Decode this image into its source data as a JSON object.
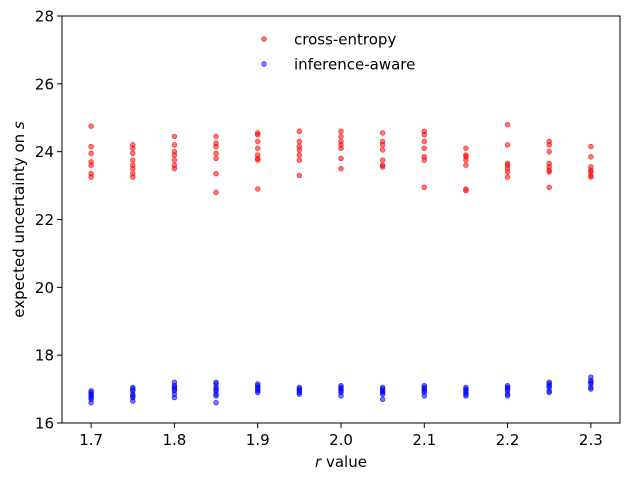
{
  "chart_data": {
    "type": "scatter",
    "title": "",
    "xlabel_var": "r",
    "xlabel_rest": " value",
    "ylabel_main": "expected uncertainty on ",
    "ylabel_var": "s",
    "xlim": [
      1.665,
      2.335
    ],
    "ylim": [
      16,
      28
    ],
    "xticks": [
      1.7,
      1.8,
      1.9,
      2.0,
      2.1,
      2.2,
      2.3
    ],
    "xtick_labels": [
      "1.7",
      "1.8",
      "1.9",
      "2.0",
      "2.1",
      "2.2",
      "2.3"
    ],
    "yticks": [
      16,
      18,
      20,
      22,
      24,
      26,
      28
    ],
    "ytick_labels": [
      "16",
      "18",
      "20",
      "22",
      "24",
      "26",
      "28"
    ],
    "grid": false,
    "legend_position": "upper-center",
    "series": [
      {
        "name": "cross-entropy",
        "color": "#ff0000",
        "points": [
          [
            1.7,
            24.75
          ],
          [
            1.7,
            24.15
          ],
          [
            1.7,
            23.95
          ],
          [
            1.7,
            23.7
          ],
          [
            1.7,
            23.6
          ],
          [
            1.7,
            23.35
          ],
          [
            1.7,
            23.25
          ],
          [
            1.75,
            24.2
          ],
          [
            1.75,
            24.1
          ],
          [
            1.75,
            23.95
          ],
          [
            1.75,
            23.75
          ],
          [
            1.75,
            23.6
          ],
          [
            1.75,
            23.5
          ],
          [
            1.75,
            23.35
          ],
          [
            1.75,
            23.25
          ],
          [
            1.8,
            24.45
          ],
          [
            1.8,
            24.2
          ],
          [
            1.8,
            24.0
          ],
          [
            1.8,
            23.9
          ],
          [
            1.8,
            23.75
          ],
          [
            1.8,
            23.6
          ],
          [
            1.8,
            23.5
          ],
          [
            1.85,
            24.45
          ],
          [
            1.85,
            24.25
          ],
          [
            1.85,
            24.15
          ],
          [
            1.85,
            23.95
          ],
          [
            1.85,
            23.8
          ],
          [
            1.85,
            23.35
          ],
          [
            1.85,
            22.8
          ],
          [
            1.9,
            24.55
          ],
          [
            1.9,
            24.5
          ],
          [
            1.9,
            24.3
          ],
          [
            1.9,
            24.1
          ],
          [
            1.9,
            23.9
          ],
          [
            1.9,
            23.8
          ],
          [
            1.9,
            23.75
          ],
          [
            1.9,
            22.9
          ],
          [
            1.95,
            24.6
          ],
          [
            1.95,
            24.3
          ],
          [
            1.95,
            24.15
          ],
          [
            1.95,
            24.05
          ],
          [
            1.95,
            23.9
          ],
          [
            1.95,
            23.75
          ],
          [
            1.95,
            23.3
          ],
          [
            2.0,
            24.6
          ],
          [
            2.0,
            24.45
          ],
          [
            2.0,
            24.3
          ],
          [
            2.0,
            24.2
          ],
          [
            2.0,
            24.1
          ],
          [
            2.0,
            23.8
          ],
          [
            2.0,
            23.5
          ],
          [
            2.05,
            24.55
          ],
          [
            2.05,
            24.3
          ],
          [
            2.05,
            24.2
          ],
          [
            2.05,
            24.05
          ],
          [
            2.05,
            23.75
          ],
          [
            2.05,
            23.6
          ],
          [
            2.05,
            23.55
          ],
          [
            2.1,
            24.6
          ],
          [
            2.1,
            24.5
          ],
          [
            2.1,
            24.3
          ],
          [
            2.1,
            24.1
          ],
          [
            2.1,
            23.85
          ],
          [
            2.1,
            23.75
          ],
          [
            2.1,
            22.95
          ],
          [
            2.15,
            24.1
          ],
          [
            2.15,
            23.9
          ],
          [
            2.15,
            23.85
          ],
          [
            2.15,
            23.75
          ],
          [
            2.15,
            23.6
          ],
          [
            2.15,
            22.9
          ],
          [
            2.15,
            22.85
          ],
          [
            2.2,
            24.8
          ],
          [
            2.2,
            24.2
          ],
          [
            2.2,
            23.65
          ],
          [
            2.2,
            23.6
          ],
          [
            2.2,
            23.5
          ],
          [
            2.2,
            23.4
          ],
          [
            2.2,
            23.25
          ],
          [
            2.25,
            24.3
          ],
          [
            2.25,
            24.2
          ],
          [
            2.25,
            24.0
          ],
          [
            2.25,
            23.65
          ],
          [
            2.25,
            23.55
          ],
          [
            2.25,
            23.45
          ],
          [
            2.25,
            23.4
          ],
          [
            2.25,
            22.95
          ],
          [
            2.3,
            24.15
          ],
          [
            2.3,
            23.85
          ],
          [
            2.3,
            23.55
          ],
          [
            2.3,
            23.45
          ],
          [
            2.3,
            23.4
          ],
          [
            2.3,
            23.3
          ],
          [
            2.3,
            23.25
          ]
        ]
      },
      {
        "name": "inference-aware",
        "color": "#0000ff",
        "points": [
          [
            1.7,
            16.95
          ],
          [
            1.7,
            16.9
          ],
          [
            1.7,
            16.85
          ],
          [
            1.7,
            16.8
          ],
          [
            1.7,
            16.75
          ],
          [
            1.7,
            16.7
          ],
          [
            1.7,
            16.6
          ],
          [
            1.75,
            17.05
          ],
          [
            1.75,
            17.0
          ],
          [
            1.75,
            16.95
          ],
          [
            1.75,
            16.85
          ],
          [
            1.75,
            16.8
          ],
          [
            1.75,
            16.75
          ],
          [
            1.75,
            16.65
          ],
          [
            1.8,
            17.2
          ],
          [
            1.8,
            17.1
          ],
          [
            1.8,
            17.05
          ],
          [
            1.8,
            17.0
          ],
          [
            1.8,
            16.95
          ],
          [
            1.8,
            16.85
          ],
          [
            1.8,
            16.75
          ],
          [
            1.85,
            17.2
          ],
          [
            1.85,
            17.15
          ],
          [
            1.85,
            17.05
          ],
          [
            1.85,
            17.0
          ],
          [
            1.85,
            16.95
          ],
          [
            1.85,
            16.85
          ],
          [
            1.85,
            16.8
          ],
          [
            1.85,
            16.6
          ],
          [
            1.9,
            17.15
          ],
          [
            1.9,
            17.1
          ],
          [
            1.9,
            17.05
          ],
          [
            1.9,
            17.0
          ],
          [
            1.9,
            16.95
          ],
          [
            1.9,
            16.9
          ],
          [
            1.95,
            17.05
          ],
          [
            1.95,
            17.0
          ],
          [
            1.95,
            16.95
          ],
          [
            1.95,
            16.9
          ],
          [
            1.95,
            16.85
          ],
          [
            2.0,
            17.1
          ],
          [
            2.0,
            17.05
          ],
          [
            2.0,
            17.0
          ],
          [
            2.0,
            16.95
          ],
          [
            2.0,
            16.9
          ],
          [
            2.0,
            16.8
          ],
          [
            2.05,
            17.05
          ],
          [
            2.05,
            17.0
          ],
          [
            2.05,
            16.95
          ],
          [
            2.05,
            16.9
          ],
          [
            2.05,
            16.85
          ],
          [
            2.05,
            16.7
          ],
          [
            2.1,
            17.1
          ],
          [
            2.1,
            17.05
          ],
          [
            2.1,
            17.0
          ],
          [
            2.1,
            16.95
          ],
          [
            2.1,
            16.9
          ],
          [
            2.1,
            16.8
          ],
          [
            2.15,
            17.05
          ],
          [
            2.15,
            17.0
          ],
          [
            2.15,
            16.95
          ],
          [
            2.15,
            16.9
          ],
          [
            2.15,
            16.85
          ],
          [
            2.15,
            16.8
          ],
          [
            2.2,
            17.1
          ],
          [
            2.2,
            17.05
          ],
          [
            2.2,
            17.0
          ],
          [
            2.2,
            16.95
          ],
          [
            2.2,
            16.85
          ],
          [
            2.2,
            16.8
          ],
          [
            2.25,
            17.2
          ],
          [
            2.25,
            17.15
          ],
          [
            2.25,
            17.1
          ],
          [
            2.25,
            17.05
          ],
          [
            2.25,
            16.95
          ],
          [
            2.25,
            16.9
          ],
          [
            2.3,
            17.35
          ],
          [
            2.3,
            17.25
          ],
          [
            2.3,
            17.2
          ],
          [
            2.3,
            17.15
          ],
          [
            2.3,
            17.05
          ],
          [
            2.3,
            17.0
          ]
        ]
      }
    ]
  }
}
